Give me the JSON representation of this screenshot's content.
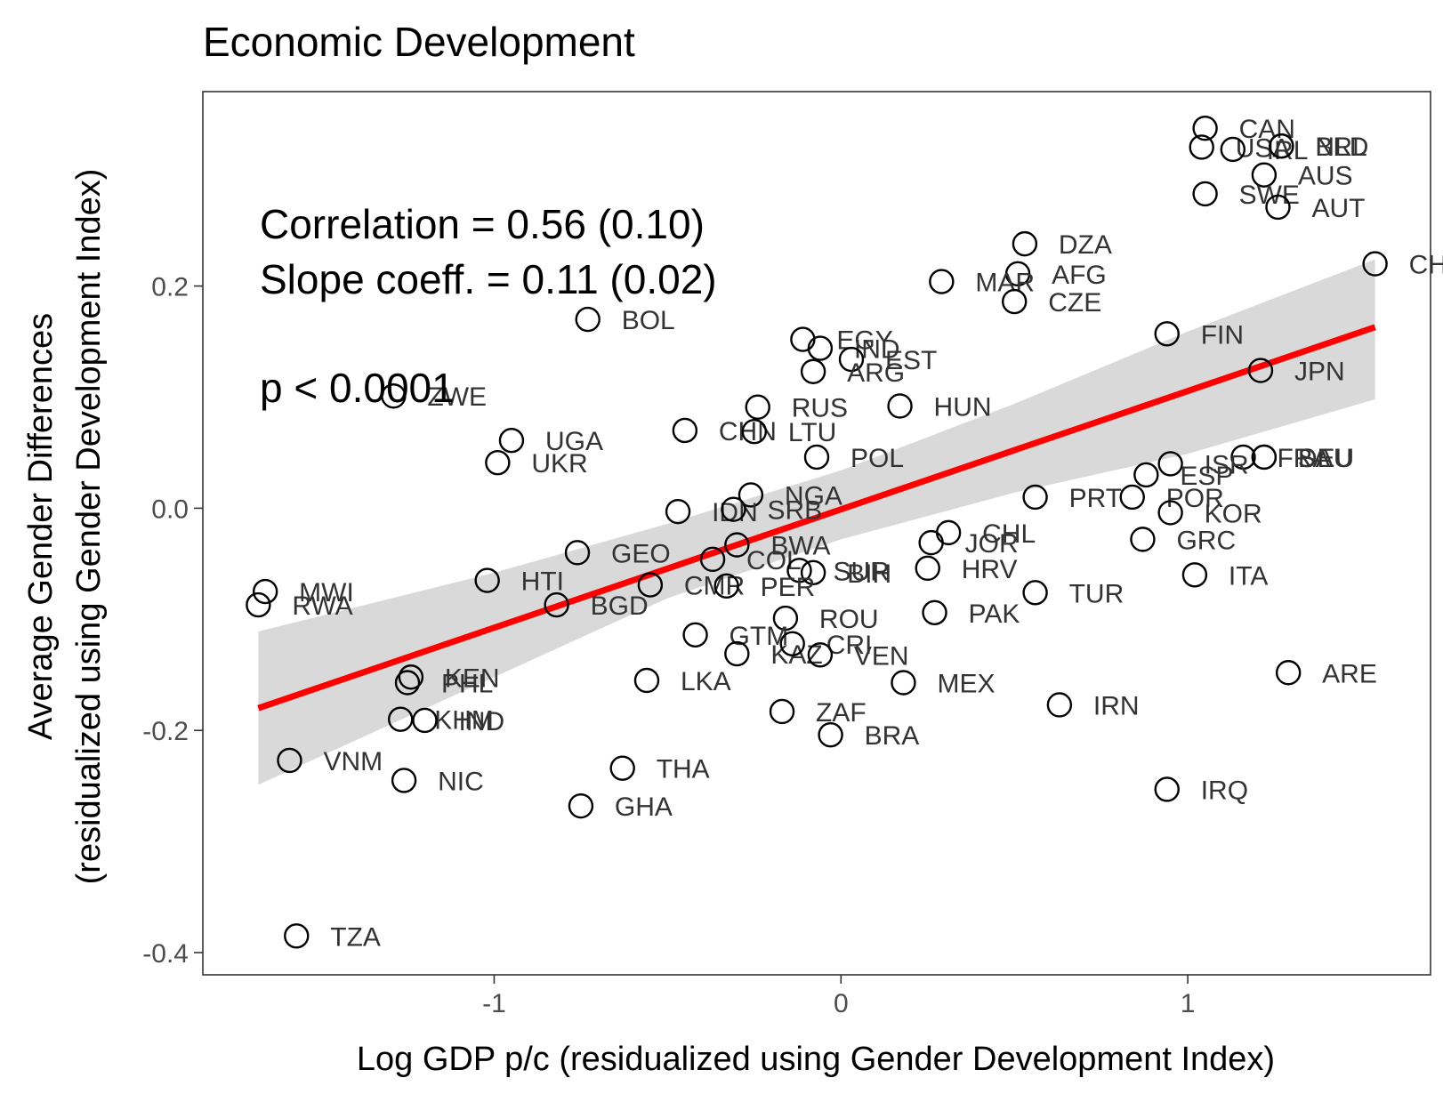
{
  "chart_data": {
    "type": "scatter",
    "title": "Economic Development",
    "xlabel": "Log GDP p/c (residualized using Gender Development Index)",
    "ylabel_line1": "Average Gender Differences",
    "ylabel_line2": "(residualized using Gender Development Index)",
    "xlim": [
      -1.84,
      1.7
    ],
    "ylim": [
      -0.42,
      0.375
    ],
    "x_ticks": [
      {
        "value": -1,
        "label": "-1"
      },
      {
        "value": 0,
        "label": "0"
      },
      {
        "value": 1,
        "label": "1"
      }
    ],
    "y_ticks": [
      {
        "value": -0.4,
        "label": "-0.4"
      },
      {
        "value": -0.2,
        "label": "-0.2"
      },
      {
        "value": 0.0,
        "label": "0.0"
      },
      {
        "value": 0.2,
        "label": "0.2"
      }
    ],
    "grid": false,
    "annotation": {
      "correlation": "Correlation = 0.56 (0.10)",
      "slope": "Slope coeff. = 0.11 (0.02)",
      "pvalue": "p < 0.0001"
    },
    "fit_line": {
      "x": [
        -1.68,
        1.54
      ],
      "y": [
        -0.18,
        0.163
      ],
      "color": "#ff0000"
    },
    "confidence_band": {
      "x": [
        -1.68,
        -1.0,
        -0.5,
        0.0,
        0.5,
        1.0,
        1.54
      ],
      "upper": [
        -0.111,
        -0.058,
        -0.014,
        0.034,
        0.094,
        0.159,
        0.224
      ],
      "lower": [
        -0.249,
        -0.152,
        -0.081,
        -0.028,
        0.014,
        0.049,
        0.098
      ],
      "color": "#d9d9d9"
    },
    "points": [
      {
        "label": "CAN",
        "x": 1.05,
        "y": 0.342
      },
      {
        "label": "USA",
        "x": 1.04,
        "y": 0.325
      },
      {
        "label": "IRL",
        "x": 1.13,
        "y": 0.323
      },
      {
        "label": "BRL",
        "x": 1.27,
        "y": 0.326
      },
      {
        "label": "NLD",
        "x": 1.27,
        "y": 0.326
      },
      {
        "label": "AUS",
        "x": 1.22,
        "y": 0.3
      },
      {
        "label": "SWE",
        "x": 1.05,
        "y": 0.283
      },
      {
        "label": "AUT",
        "x": 1.26,
        "y": 0.271
      },
      {
        "label": "CHE",
        "x": 1.54,
        "y": 0.22
      },
      {
        "label": "DZA",
        "x": 0.53,
        "y": 0.238
      },
      {
        "label": "AFG",
        "x": 0.51,
        "y": 0.211
      },
      {
        "label": "MAR",
        "x": 0.29,
        "y": 0.204
      },
      {
        "label": "CZE",
        "x": 0.5,
        "y": 0.186
      },
      {
        "label": "FIN",
        "x": 0.94,
        "y": 0.157
      },
      {
        "label": "BOL",
        "x": -0.73,
        "y": 0.17
      },
      {
        "label": "EGY",
        "x": -0.11,
        "y": 0.152
      },
      {
        "label": "IND",
        "x": -0.06,
        "y": 0.144
      },
      {
        "label": "EST",
        "x": 0.03,
        "y": 0.134
      },
      {
        "label": "ARG",
        "x": -0.08,
        "y": 0.123
      },
      {
        "label": "JPN",
        "x": 1.21,
        "y": 0.124
      },
      {
        "label": "ZWE",
        "x": -1.29,
        "y": 0.101
      },
      {
        "label": "RUS",
        "x": -0.24,
        "y": 0.091
      },
      {
        "label": "HUN",
        "x": 0.17,
        "y": 0.092
      },
      {
        "label": "CHN",
        "x": -0.45,
        "y": 0.07
      },
      {
        "label": "LTU",
        "x": -0.25,
        "y": 0.069
      },
      {
        "label": "UGA",
        "x": -0.95,
        "y": 0.061
      },
      {
        "label": "UKR",
        "x": -0.99,
        "y": 0.041
      },
      {
        "label": "POL",
        "x": -0.07,
        "y": 0.046
      },
      {
        "label": "FRA",
        "x": 1.16,
        "y": 0.046
      },
      {
        "label": "DEU",
        "x": 1.22,
        "y": 0.046
      },
      {
        "label": "SAU",
        "x": 1.22,
        "y": 0.046
      },
      {
        "label": "ISR",
        "x": 0.95,
        "y": 0.04
      },
      {
        "label": "ESP",
        "x": 0.88,
        "y": 0.03
      },
      {
        "label": "NGA",
        "x": -0.26,
        "y": 0.012
      },
      {
        "label": "PRT",
        "x": 0.56,
        "y": 0.01
      },
      {
        "label": "POR",
        "x": 0.84,
        "y": 0.01
      },
      {
        "label": "KOR",
        "x": 0.95,
        "y": -0.004
      },
      {
        "label": "IDN",
        "x": -0.47,
        "y": -0.003
      },
      {
        "label": "SRB",
        "x": -0.31,
        "y": -0.001
      },
      {
        "label": "CHL",
        "x": 0.31,
        "y": -0.022
      },
      {
        "label": "JOR",
        "x": 0.26,
        "y": -0.031
      },
      {
        "label": "GRC",
        "x": 0.87,
        "y": -0.028
      },
      {
        "label": "BWA",
        "x": -0.3,
        "y": -0.033
      },
      {
        "label": "GEO",
        "x": -0.76,
        "y": -0.04
      },
      {
        "label": "COL",
        "x": -0.37,
        "y": -0.046
      },
      {
        "label": "SUR",
        "x": -0.12,
        "y": -0.056
      },
      {
        "label": "BIH",
        "x": -0.08,
        "y": -0.058
      },
      {
        "label": "HRV",
        "x": 0.25,
        "y": -0.054
      },
      {
        "label": "ITA",
        "x": 1.02,
        "y": -0.06
      },
      {
        "label": "HTI",
        "x": -1.02,
        "y": -0.065
      },
      {
        "label": "CMR",
        "x": -0.55,
        "y": -0.069
      },
      {
        "label": "PER",
        "x": -0.33,
        "y": -0.07
      },
      {
        "label": "TUR",
        "x": 0.56,
        "y": -0.076
      },
      {
        "label": "MWI",
        "x": -1.66,
        "y": -0.075
      },
      {
        "label": "RWA",
        "x": -1.68,
        "y": -0.087
      },
      {
        "label": "BGD",
        "x": -0.82,
        "y": -0.087
      },
      {
        "label": "ROU",
        "x": -0.16,
        "y": -0.099
      },
      {
        "label": "PAK",
        "x": 0.27,
        "y": -0.094
      },
      {
        "label": "GTM",
        "x": -0.42,
        "y": -0.114
      },
      {
        "label": "KAZ",
        "x": -0.3,
        "y": -0.131
      },
      {
        "label": "CRI",
        "x": -0.14,
        "y": -0.122
      },
      {
        "label": "VEN",
        "x": -0.06,
        "y": -0.132
      },
      {
        "label": "ARE",
        "x": 1.29,
        "y": -0.148
      },
      {
        "label": "KEN",
        "x": -1.24,
        "y": -0.152
      },
      {
        "label": "PHL",
        "x": -1.25,
        "y": -0.157
      },
      {
        "label": "LKA",
        "x": -0.56,
        "y": -0.155
      },
      {
        "label": "MEX",
        "x": 0.18,
        "y": -0.157
      },
      {
        "label": "IRN",
        "x": 0.63,
        "y": -0.177
      },
      {
        "label": "ZAF",
        "x": -0.17,
        "y": -0.183
      },
      {
        "label": "BRA",
        "x": -0.03,
        "y": -0.204
      },
      {
        "label": "KHM",
        "x": -1.27,
        "y": -0.19
      },
      {
        "label": "IND",
        "x": -1.2,
        "y": -0.191
      },
      {
        "label": "VNM",
        "x": -1.59,
        "y": -0.227
      },
      {
        "label": "THA",
        "x": -0.63,
        "y": -0.234
      },
      {
        "label": "NIC",
        "x": -1.26,
        "y": -0.245
      },
      {
        "label": "IRQ",
        "x": 0.94,
        "y": -0.253
      },
      {
        "label": "GHA",
        "x": -0.75,
        "y": -0.268
      },
      {
        "label": "TZA",
        "x": -1.57,
        "y": -0.385
      }
    ]
  }
}
